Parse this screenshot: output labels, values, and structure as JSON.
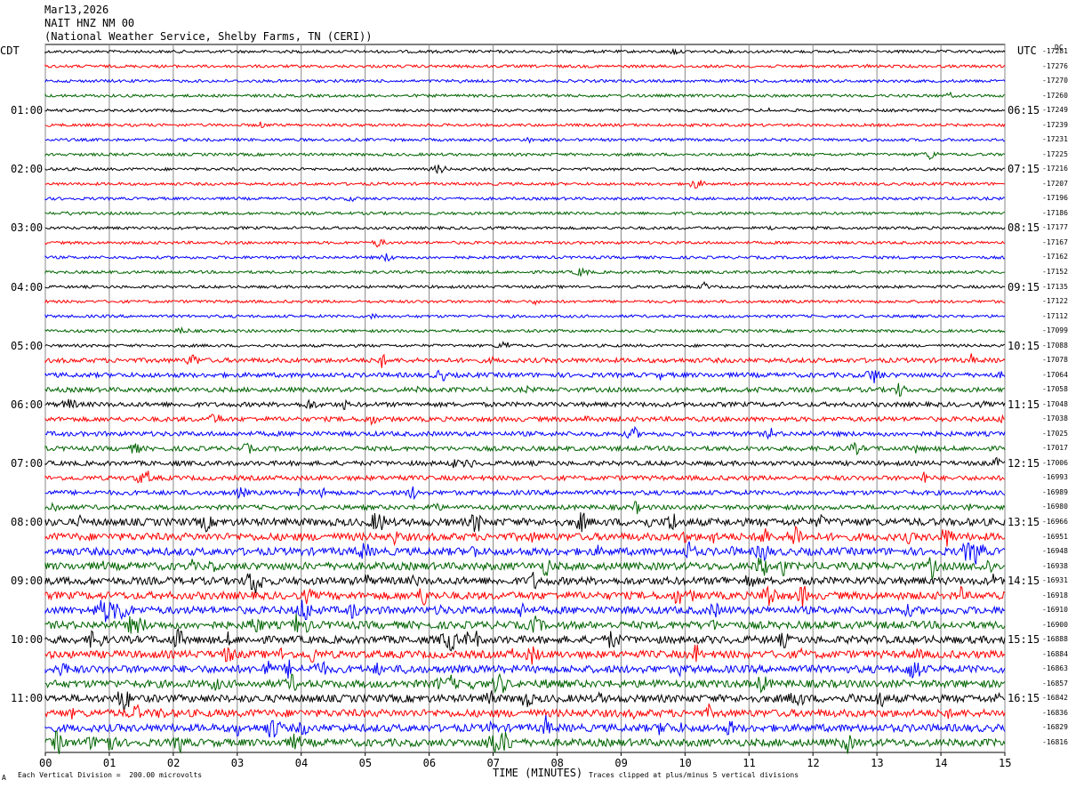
{
  "header": {
    "date": "Mar13,2026",
    "station": "NAIT HNZ NM 00",
    "network": "(National Weather Service, Shelby Farms, TN (CERI))"
  },
  "left_tz": "CDT",
  "right_tz": "UTC",
  "right_unit": "DC",
  "footer": {
    "scale_note": "Each Vertical Division =  200.00 microvolts",
    "clip_note": "Traces clipped at plus/minus 5 vertical divisions",
    "corner_mark": "A"
  },
  "colors": [
    "#000000",
    "#ff0000",
    "#0000ff",
    "#006400"
  ],
  "chart_data": {
    "type": "line",
    "title": "NAIT HNZ NM 00",
    "xlabel": "TIME (MINUTES)",
    "ylabel": "",
    "x_ticks": [
      "00",
      "01",
      "02",
      "03",
      "04",
      "05",
      "06",
      "07",
      "08",
      "09",
      "10",
      "11",
      "12",
      "13",
      "14",
      "15"
    ],
    "xlim": [
      0,
      15
    ],
    "left_hour_labels": [
      "01:00",
      "02:00",
      "03:00",
      "04:00",
      "05:00",
      "06:00",
      "07:00",
      "08:00",
      "09:00",
      "10:00",
      "11:00"
    ],
    "right_hour_labels": [
      "06:15",
      "07:15",
      "08:15",
      "09:15",
      "10:15",
      "11:15",
      "12:15",
      "13:15",
      "14:15",
      "15:15",
      "16:15"
    ],
    "trace_count": 48,
    "trace_offsets": [
      -17281,
      -17276,
      -17270,
      -17260,
      -17249,
      -17239,
      -17231,
      -17225,
      -17216,
      -17207,
      -17196,
      -17186,
      -17177,
      -17167,
      -17162,
      -17152,
      -17135,
      -17122,
      -17112,
      -17099,
      -17088,
      -17078,
      -17064,
      -17058,
      -17048,
      -17038,
      -17025,
      -17017,
      -17006,
      -16993,
      -16989,
      -16980,
      -16966,
      -16951,
      -16948,
      -16938,
      -16931,
      -16918,
      -16910,
      -16900,
      -16888,
      -16884,
      -16863,
      -16857,
      -16842,
      -16836,
      -16829,
      -16816
    ],
    "trace_amplitude_level": [
      1,
      1,
      1,
      1,
      1,
      1,
      1,
      1,
      1,
      1,
      1,
      1,
      1,
      1,
      1,
      1,
      1,
      1,
      1,
      1,
      1,
      2,
      2,
      2,
      2,
      2,
      2,
      2,
      2,
      2,
      2,
      2,
      3,
      3,
      3,
      3,
      3,
      3,
      3,
      3,
      3,
      3,
      3,
      3,
      3,
      3,
      3,
      3
    ],
    "grid": "vertical lines at each minute",
    "scale": "200.00 microvolts per vertical division",
    "clipping": "plus/minus 5 vertical divisions"
  }
}
